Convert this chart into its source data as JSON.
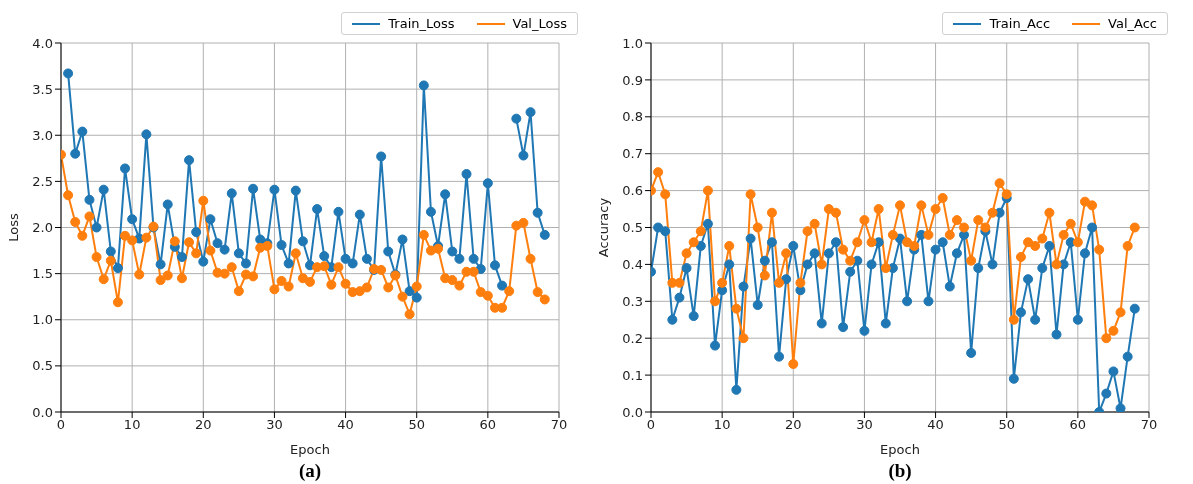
{
  "chart_data": [
    {
      "type": "line",
      "xlabel": "Epoch",
      "ylabel": "Loss",
      "annotations": [
        "(a)"
      ],
      "legend": "top right",
      "grid": true,
      "marker": "circle",
      "line_style": "solid",
      "xlim": [
        0,
        70
      ],
      "xticks": [
        0,
        10,
        20,
        30,
        40,
        50,
        60,
        70
      ],
      "ylim": [
        0,
        4
      ],
      "yticks": [
        {
          "value": 0,
          "label": "0.0"
        },
        0.5,
        {
          "value": 1,
          "label": "1.0"
        },
        1.5,
        {
          "value": 2,
          "label": "2.0"
        },
        2.5,
        {
          "value": 3,
          "label": "3.0"
        },
        3.5,
        {
          "value": 4,
          "label": "4.0"
        }
      ],
      "x": [
        0,
        1,
        2,
        3,
        4,
        5,
        6,
        7,
        8,
        9,
        10,
        11,
        12,
        13,
        14,
        15,
        16,
        17,
        18,
        19,
        20,
        21,
        22,
        23,
        24,
        25,
        26,
        27,
        28,
        29,
        30,
        31,
        32,
        33,
        34,
        35,
        36,
        37,
        38,
        39,
        40,
        41,
        42,
        43,
        44,
        45,
        46,
        47,
        48,
        49,
        50,
        51,
        52,
        53,
        54,
        55,
        56,
        57,
        58,
        59,
        60,
        61,
        62,
        63,
        64,
        65,
        66,
        67,
        68
      ],
      "series": [
        {
          "name": "Train_Loss",
          "color": "#1f77b4",
          "values": [
            null,
            3.67,
            2.8,
            3.04,
            2.3,
            2.0,
            2.41,
            1.74,
            1.56,
            2.64,
            2.09,
            1.88,
            3.01,
            2.0,
            1.6,
            2.25,
            1.79,
            1.68,
            2.73,
            1.95,
            1.63,
            2.09,
            1.83,
            1.76,
            2.37,
            1.72,
            1.61,
            2.42,
            1.87,
            1.83,
            2.41,
            1.81,
            1.61,
            2.4,
            1.85,
            1.59,
            2.2,
            1.69,
            1.57,
            2.17,
            1.66,
            1.61,
            2.14,
            1.66,
            1.54,
            2.77,
            1.74,
            1.49,
            1.87,
            1.31,
            1.24,
            3.54,
            2.17,
            1.8,
            2.36,
            1.74,
            1.66,
            2.58,
            1.66,
            1.55,
            2.48,
            1.59,
            1.37,
            null,
            3.18,
            2.78,
            3.25,
            2.16,
            1.92
          ]
        },
        {
          "name": "Val_Loss",
          "color": "#ff7f0e",
          "values": [
            2.79,
            2.35,
            2.06,
            1.91,
            2.12,
            1.68,
            1.44,
            1.64,
            1.19,
            1.91,
            1.86,
            1.49,
            1.89,
            2.01,
            1.43,
            1.48,
            1.85,
            1.45,
            1.84,
            1.72,
            2.29,
            1.75,
            1.51,
            1.5,
            1.57,
            1.31,
            1.49,
            1.47,
            1.78,
            1.8,
            1.33,
            1.42,
            1.36,
            1.72,
            1.45,
            1.41,
            1.57,
            1.58,
            1.38,
            1.57,
            1.39,
            1.3,
            1.31,
            1.35,
            1.55,
            1.54,
            1.35,
            1.48,
            1.25,
            1.06,
            1.36,
            1.92,
            1.75,
            1.77,
            1.45,
            1.43,
            1.37,
            1.52,
            1.52,
            1.3,
            1.26,
            1.13,
            1.13,
            1.31,
            2.02,
            2.05,
            1.66,
            1.3,
            1.22
          ]
        }
      ]
    },
    {
      "type": "line",
      "xlabel": "Epoch",
      "ylabel": "Accuracy",
      "annotations": [
        "(b)"
      ],
      "legend": "top right",
      "grid": true,
      "marker": "circle",
      "line_style": "solid",
      "xlim": [
        0,
        70
      ],
      "xticks": [
        0,
        10,
        20,
        30,
        40,
        50,
        60,
        70
      ],
      "ylim": [
        0,
        1
      ],
      "yticks": [
        {
          "value": 0,
          "label": "0.0"
        },
        0.1,
        0.2,
        0.3,
        0.4,
        0.5,
        0.6,
        0.7,
        0.8,
        0.9,
        {
          "value": 1,
          "label": "1.0"
        }
      ],
      "x": [
        0,
        1,
        2,
        3,
        4,
        5,
        6,
        7,
        8,
        9,
        10,
        11,
        12,
        13,
        14,
        15,
        16,
        17,
        18,
        19,
        20,
        21,
        22,
        23,
        24,
        25,
        26,
        27,
        28,
        29,
        30,
        31,
        32,
        33,
        34,
        35,
        36,
        37,
        38,
        39,
        40,
        41,
        42,
        43,
        44,
        45,
        46,
        47,
        48,
        49,
        50,
        51,
        52,
        53,
        54,
        55,
        56,
        57,
        58,
        59,
        60,
        61,
        62,
        63,
        64,
        65,
        66,
        67,
        68
      ],
      "series": [
        {
          "name": "Train_Acc",
          "color": "#1f77b4",
          "values": [
            0.38,
            0.5,
            0.49,
            0.25,
            0.31,
            0.39,
            0.26,
            0.45,
            0.51,
            0.18,
            0.33,
            0.4,
            0.06,
            0.34,
            0.47,
            0.29,
            0.41,
            0.46,
            0.15,
            0.36,
            0.45,
            0.33,
            0.4,
            0.43,
            0.24,
            0.43,
            0.46,
            0.23,
            0.38,
            0.41,
            0.22,
            0.4,
            0.46,
            0.24,
            0.39,
            0.47,
            0.3,
            0.44,
            0.48,
            0.3,
            0.44,
            0.46,
            0.34,
            0.43,
            0.48,
            0.16,
            0.39,
            0.49,
            0.4,
            0.54,
            0.58,
            0.09,
            0.27,
            0.36,
            0.25,
            0.39,
            0.45,
            0.21,
            0.4,
            0.46,
            0.25,
            0.43,
            0.5,
            0.0,
            0.05,
            0.11,
            0.01,
            0.15,
            0.28
          ]
        },
        {
          "name": "Val_Acc",
          "color": "#ff7f0e",
          "values": [
            0.6,
            0.65,
            0.59,
            0.35,
            0.35,
            0.43,
            0.46,
            0.49,
            0.6,
            0.3,
            0.35,
            0.45,
            0.28,
            0.2,
            0.59,
            0.5,
            0.37,
            0.54,
            0.35,
            0.43,
            0.13,
            0.35,
            0.49,
            0.51,
            0.4,
            0.55,
            0.54,
            0.44,
            0.41,
            0.46,
            0.52,
            0.46,
            0.55,
            0.39,
            0.48,
            0.56,
            0.46,
            0.45,
            0.56,
            0.48,
            0.55,
            0.58,
            0.48,
            0.52,
            0.5,
            0.41,
            0.52,
            0.5,
            0.54,
            0.62,
            0.59,
            0.25,
            0.42,
            0.46,
            0.45,
            0.47,
            0.54,
            0.4,
            0.48,
            0.51,
            0.46,
            0.57,
            0.56,
            0.44,
            0.2,
            0.22,
            0.27,
            0.45,
            0.5
          ]
        }
      ]
    }
  ]
}
